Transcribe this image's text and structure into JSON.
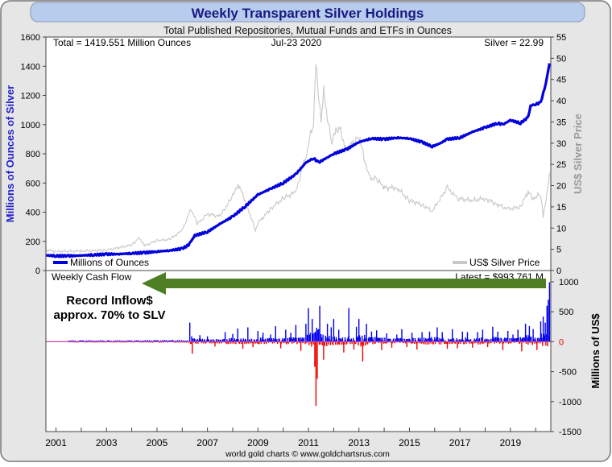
{
  "title": "Weekly Transparent Silver Holdings",
  "subtitle": "Total Published Repositories, Mutual Funds and ETFs in Ounces",
  "header_left": "Total = 1419.551 Million Ounces",
  "header_date": "Jul-23  2020",
  "header_right": "Silver = 22.99",
  "footer": "world gold charts © www.goldchartsrus.com",
  "colors": {
    "holdings": "#0000dd",
    "silver_price": "#c8c8c8",
    "inflow": "#0000ee",
    "outflow": "#ee0000",
    "arrow": "#4e7f25",
    "title_bg": "#b8ccee",
    "title_text": "#1a1a80"
  },
  "chart_data": [
    {
      "type": "line",
      "xlabel": "",
      "ylabel": "Millions of Ounces of Silver",
      "y2label": "US$ Silver Price",
      "xlim": [
        2000.6,
        2020.6
      ],
      "ylim": [
        0,
        1600
      ],
      "y2lim": [
        0,
        55
      ],
      "x_ticks": [
        "2001",
        "2003",
        "2005",
        "2007",
        "2009",
        "2011",
        "2013",
        "2015",
        "2017",
        "2019"
      ],
      "y_ticks": [
        "0",
        "200",
        "400",
        "600",
        "800",
        "1000",
        "1200",
        "1400",
        "1600"
      ],
      "y2_ticks": [
        "0",
        "5",
        "10",
        "15",
        "20",
        "25",
        "30",
        "35",
        "40",
        "45",
        "50",
        "55"
      ],
      "legend": "bottom",
      "series": [
        {
          "name": "Millions of Ounces",
          "x": [
            2000.6,
            2001.0,
            2001.5,
            2002.0,
            2002.5,
            2003.0,
            2003.5,
            2004.0,
            2004.5,
            2005.0,
            2005.5,
            2006.0,
            2006.25,
            2006.35,
            2006.5,
            2007.0,
            2007.5,
            2008.0,
            2008.5,
            2009.0,
            2009.5,
            2010.0,
            2010.5,
            2010.9,
            2011.2,
            2011.4,
            2011.8,
            2012.0,
            2012.5,
            2013.0,
            2013.5,
            2014.0,
            2014.5,
            2015.0,
            2015.5,
            2015.9,
            2016.2,
            2016.5,
            2017.0,
            2017.5,
            2018.0,
            2018.5,
            2018.7,
            2019.0,
            2019.4,
            2019.7,
            2019.8,
            2020.0,
            2020.2,
            2020.4,
            2020.55
          ],
          "values": [
            105,
            100,
            100,
            103,
            107,
            112,
            113,
            118,
            122,
            130,
            137,
            150,
            175,
            200,
            240,
            265,
            320,
            370,
            440,
            520,
            560,
            600,
            660,
            740,
            770,
            740,
            780,
            800,
            830,
            880,
            905,
            900,
            910,
            905,
            880,
            850,
            870,
            900,
            910,
            950,
            980,
            1010,
            1000,
            1030,
            1010,
            1050,
            1130,
            1140,
            1150,
            1280,
            1420
          ]
        },
        {
          "name": "US$ Silver Price",
          "axis": "right",
          "x": [
            2000.6,
            2001.0,
            2002.0,
            2003.0,
            2004.0,
            2004.3,
            2004.5,
            2005.0,
            2005.5,
            2006.0,
            2006.35,
            2006.6,
            2007.0,
            2007.5,
            2008.0,
            2008.2,
            2008.5,
            2008.9,
            2009.0,
            2009.5,
            2010.0,
            2010.5,
            2010.9,
            2011.2,
            2011.3,
            2011.5,
            2011.6,
            2011.9,
            2012.2,
            2012.5,
            2013.0,
            2013.4,
            2013.7,
            2014.0,
            2014.5,
            2015.0,
            2015.5,
            2015.9,
            2016.5,
            2016.9,
            2017.5,
            2018.0,
            2018.5,
            2018.9,
            2019.4,
            2019.7,
            2019.9,
            2020.2,
            2020.3,
            2020.45,
            2020.55
          ],
          "values": [
            4.9,
            4.5,
            4.6,
            4.8,
            6.0,
            7.8,
            5.8,
            7.1,
            7.3,
            9.5,
            14.5,
            11.0,
            13.3,
            12.8,
            17.5,
            20.5,
            16.5,
            9.5,
            11.2,
            14.5,
            17.0,
            18.5,
            27.0,
            35.0,
            48.5,
            35.0,
            42.0,
            30.5,
            34.0,
            28.5,
            31.5,
            22.0,
            21.5,
            19.5,
            19.5,
            16.5,
            15.5,
            14.0,
            19.5,
            17.0,
            16.5,
            17.0,
            15.5,
            14.5,
            15.0,
            18.5,
            17.0,
            18.0,
            12.5,
            18.5,
            22.99
          ]
        }
      ]
    },
    {
      "type": "bar",
      "title": "Weekly Cash Flow",
      "ylabel": "Millions of US$",
      "latest_label": "Latest = $993.761 M",
      "annotation_line1": "Record Inflow$",
      "annotation_line2": "approx. 70% to SLV",
      "xlim": [
        2000.6,
        2020.6
      ],
      "ylim": [
        -1500,
        1000
      ],
      "y_ticks": [
        "1000",
        "500",
        "0",
        "-500",
        "-1000",
        "-1500"
      ],
      "x": [
        2001.5,
        2003.0,
        2004.5,
        2005.5,
        2006.3,
        2006.4,
        2006.7,
        2007.0,
        2007.3,
        2007.7,
        2008.0,
        2008.2,
        2008.4,
        2008.6,
        2008.8,
        2009.0,
        2009.2,
        2009.5,
        2009.7,
        2009.9,
        2010.1,
        2010.3,
        2010.5,
        2010.7,
        2010.9,
        2011.0,
        2011.15,
        2011.25,
        2011.3,
        2011.35,
        2011.45,
        2011.6,
        2011.75,
        2011.9,
        2012.0,
        2012.2,
        2012.4,
        2012.6,
        2012.8,
        2012.9,
        2013.0,
        2013.15,
        2013.3,
        2013.5,
        2013.7,
        2013.9,
        2014.1,
        2014.3,
        2014.5,
        2014.7,
        2014.9,
        2015.1,
        2015.3,
        2015.5,
        2015.8,
        2016.1,
        2016.3,
        2016.5,
        2016.7,
        2016.9,
        2017.1,
        2017.3,
        2017.5,
        2017.7,
        2017.9,
        2018.1,
        2018.3,
        2018.5,
        2018.7,
        2018.9,
        2019.1,
        2019.3,
        2019.45,
        2019.6,
        2019.75,
        2019.9,
        2020.05,
        2020.2,
        2020.3,
        2020.38,
        2020.45,
        2020.5,
        2020.55
      ],
      "values": [
        12,
        -10,
        18,
        20,
        320,
        -200,
        110,
        90,
        -80,
        160,
        130,
        220,
        -120,
        240,
        -90,
        180,
        150,
        120,
        260,
        -110,
        200,
        150,
        280,
        -150,
        300,
        560,
        380,
        -420,
        -1070,
        -620,
        600,
        -300,
        300,
        240,
        380,
        200,
        -180,
        560,
        -130,
        250,
        380,
        -330,
        300,
        170,
        190,
        -140,
        140,
        -100,
        120,
        210,
        -90,
        150,
        -130,
        160,
        170,
        240,
        160,
        -120,
        210,
        -110,
        170,
        160,
        -100,
        160,
        200,
        -90,
        250,
        170,
        -140,
        180,
        120,
        200,
        -160,
        300,
        260,
        210,
        -140,
        340,
        420,
        320,
        600,
        700,
        993.761
      ]
    }
  ],
  "legend": {
    "holdings_label": "Millions of Ounces",
    "price_label": "US$ Silver Price"
  }
}
